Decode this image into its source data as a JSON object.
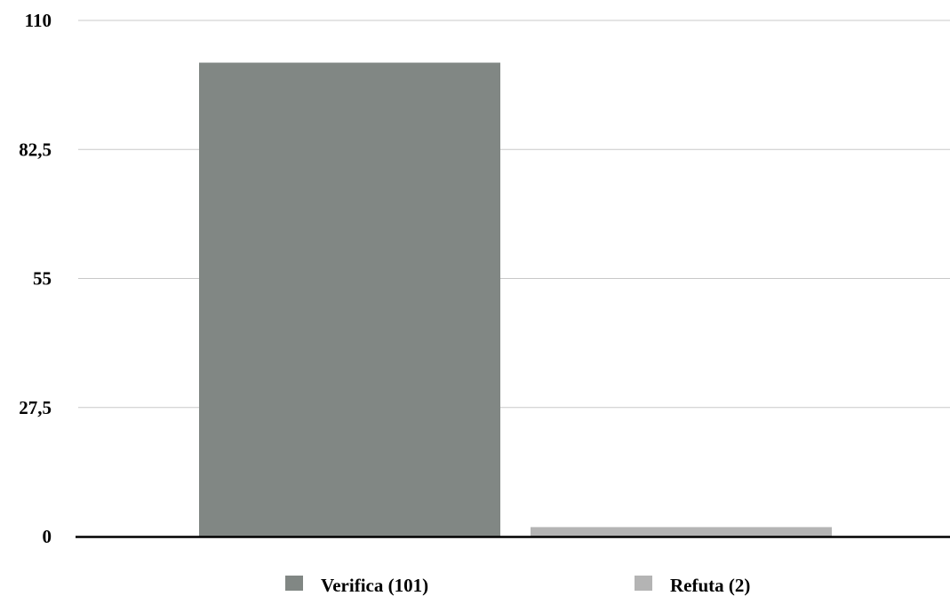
{
  "chart_data": {
    "type": "bar",
    "title": "",
    "xlabel": "",
    "ylabel": "",
    "categories": [
      "Verifica (101)",
      "Refuta (2)"
    ],
    "values": [
      101,
      2
    ],
    "colors": [
      "#818784",
      "#b4b4b4"
    ],
    "ylim": [
      0,
      110
    ],
    "yticks": [
      0,
      27.5,
      55,
      82.5,
      110
    ],
    "ytick_labels": [
      "0",
      "27,5",
      "55",
      "82,5",
      "110"
    ],
    "grid": true,
    "legend": {
      "placement": "bottom",
      "entries": [
        "Verifica (101)",
        "Refuta (2)"
      ]
    }
  }
}
